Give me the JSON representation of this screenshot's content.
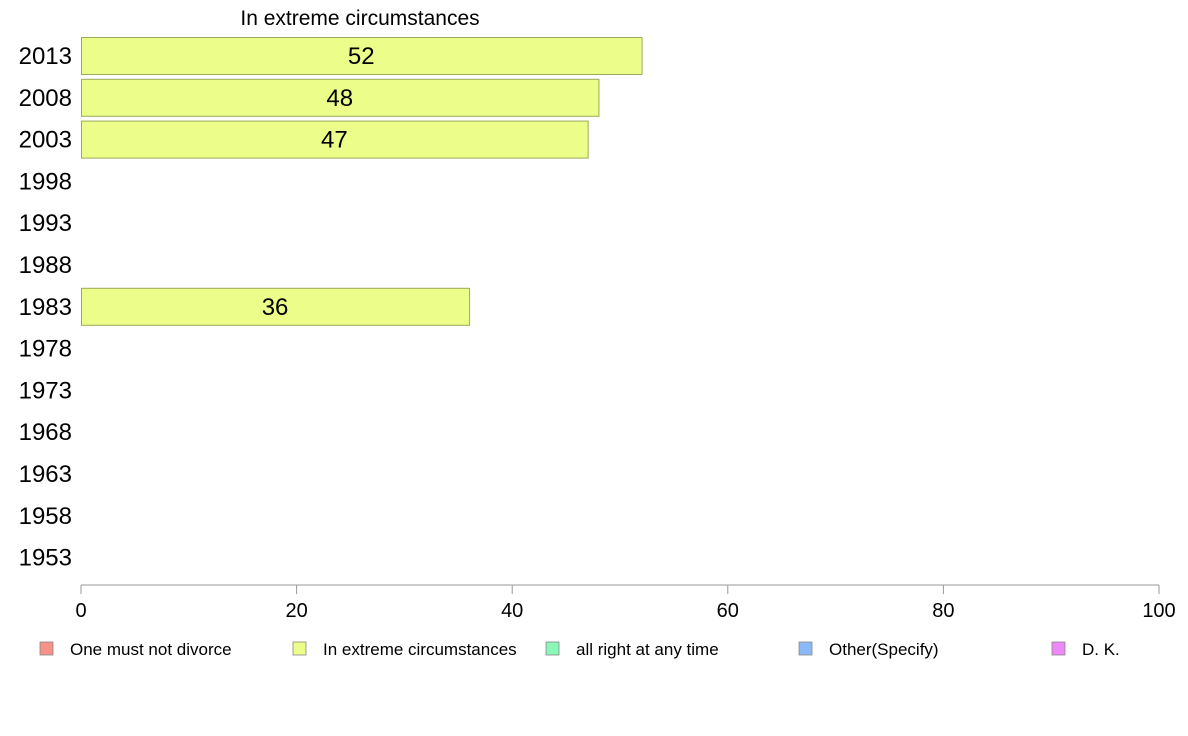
{
  "chart_data": {
    "type": "bar",
    "orientation": "horizontal",
    "title": "In extreme circumstances",
    "categories": [
      "2013",
      "2008",
      "2003",
      "1998",
      "1993",
      "1988",
      "1983",
      "1978",
      "1973",
      "1968",
      "1963",
      "1958",
      "1953"
    ],
    "series": [
      {
        "name": "In extreme circumstances",
        "color": "#ecfd89",
        "values": [
          52,
          48,
          47,
          null,
          null,
          null,
          36,
          null,
          null,
          null,
          null,
          null,
          null
        ],
        "labels": [
          "52",
          "48",
          "47",
          "",
          "",
          "",
          "36",
          "",
          "",
          "",
          "",
          "",
          ""
        ]
      }
    ],
    "xlim": [
      0,
      100
    ],
    "xticks": [
      0,
      20,
      40,
      60,
      80,
      100
    ],
    "xtick_labels": [
      "0",
      "20",
      "40",
      "60",
      "80",
      "100"
    ],
    "grid": false,
    "legend_position": "bottom",
    "legend": [
      {
        "label": "One must not divorce",
        "color": "#f7928a"
      },
      {
        "label": "In extreme circumstances",
        "color": "#ecfd89"
      },
      {
        "label": "all right at any time",
        "color": "#8af7b9"
      },
      {
        "label": "Other(Specify)",
        "color": "#8ab9f7"
      },
      {
        "label": "D. K.",
        "color": "#ec89f7"
      }
    ]
  }
}
